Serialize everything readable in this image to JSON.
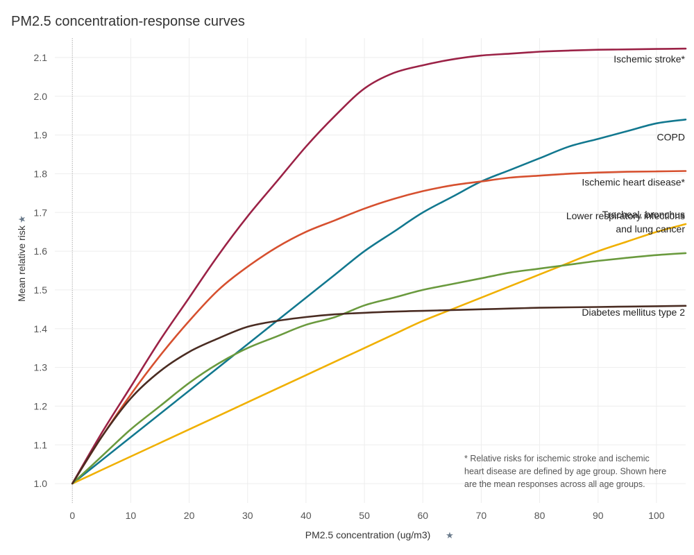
{
  "title": "PM2.5 concentration-response curves",
  "pin_icon": "pin-icon",
  "chart_data": {
    "type": "line",
    "title": "PM2.5 concentration-response curves",
    "xlabel": "PM2.5 concentration (ug/m3)",
    "ylabel": "Mean relative risk",
    "xlim": [
      -3,
      105
    ],
    "ylim": [
      0.95,
      2.15
    ],
    "xticks": [
      0,
      10,
      20,
      30,
      40,
      50,
      60,
      70,
      80,
      90,
      100
    ],
    "yticks": [
      1.0,
      1.1,
      1.2,
      1.3,
      1.4,
      1.5,
      1.6,
      1.7,
      1.8,
      1.9,
      2.0,
      2.1
    ],
    "grid": true,
    "x": [
      0,
      5,
      10,
      15,
      20,
      25,
      30,
      35,
      40,
      45,
      50,
      55,
      60,
      65,
      70,
      75,
      80,
      85,
      90,
      95,
      100,
      105
    ],
    "series": [
      {
        "name": "Ischemic stroke*",
        "color": "#9b2246",
        "label_lines": [
          "Ischemic stroke*"
        ],
        "values": [
          1.0,
          1.13,
          1.25,
          1.37,
          1.48,
          1.59,
          1.69,
          1.78,
          1.87,
          1.95,
          2.02,
          2.06,
          2.08,
          2.095,
          2.105,
          2.11,
          2.115,
          2.118,
          2.12,
          2.121,
          2.122,
          2.123
        ]
      },
      {
        "name": "COPD",
        "color": "#12788f",
        "label_lines": [
          "COPD"
        ],
        "values": [
          1.0,
          1.06,
          1.12,
          1.18,
          1.24,
          1.3,
          1.36,
          1.42,
          1.48,
          1.54,
          1.6,
          1.65,
          1.7,
          1.74,
          1.78,
          1.81,
          1.84,
          1.87,
          1.89,
          1.91,
          1.93,
          1.94
        ]
      },
      {
        "name": "Ischemic heart disease*",
        "color": "#d6502f",
        "label_lines": [
          "Ischemic heart disease*"
        ],
        "values": [
          1.0,
          1.12,
          1.23,
          1.33,
          1.42,
          1.5,
          1.56,
          1.61,
          1.65,
          1.68,
          1.71,
          1.735,
          1.755,
          1.77,
          1.78,
          1.79,
          1.795,
          1.8,
          1.803,
          1.805,
          1.806,
          1.807
        ]
      },
      {
        "name": "Lower respiratory infections",
        "color": "#f0b000",
        "label_lines": [
          "Lower respiratory infections"
        ],
        "values": [
          1.0,
          1.035,
          1.07,
          1.105,
          1.14,
          1.175,
          1.21,
          1.245,
          1.28,
          1.315,
          1.35,
          1.385,
          1.42,
          1.45,
          1.48,
          1.51,
          1.54,
          1.57,
          1.6,
          1.625,
          1.65,
          1.67
        ]
      },
      {
        "name": "Tracheal, bronchus and lung cancer",
        "color": "#6a9a3e",
        "label_lines": [
          "Tracheal, bronchus",
          "and lung cancer"
        ],
        "values": [
          1.0,
          1.07,
          1.14,
          1.2,
          1.26,
          1.31,
          1.35,
          1.38,
          1.41,
          1.43,
          1.46,
          1.48,
          1.5,
          1.515,
          1.53,
          1.545,
          1.555,
          1.565,
          1.575,
          1.583,
          1.59,
          1.595
        ]
      },
      {
        "name": "Diabetes mellitus type 2",
        "color": "#4a2c22",
        "label_lines": [
          "Diabetes mellitus type 2"
        ],
        "values": [
          1.0,
          1.12,
          1.22,
          1.29,
          1.34,
          1.375,
          1.405,
          1.42,
          1.43,
          1.437,
          1.441,
          1.444,
          1.446,
          1.448,
          1.45,
          1.452,
          1.454,
          1.455,
          1.456,
          1.457,
          1.458,
          1.459
        ]
      }
    ],
    "footnote_lines": [
      "* Relative risks for ischemic stroke and ischemic",
      "heart disease are defined by age group. Shown here",
      "are the mean responses across all age groups."
    ]
  }
}
